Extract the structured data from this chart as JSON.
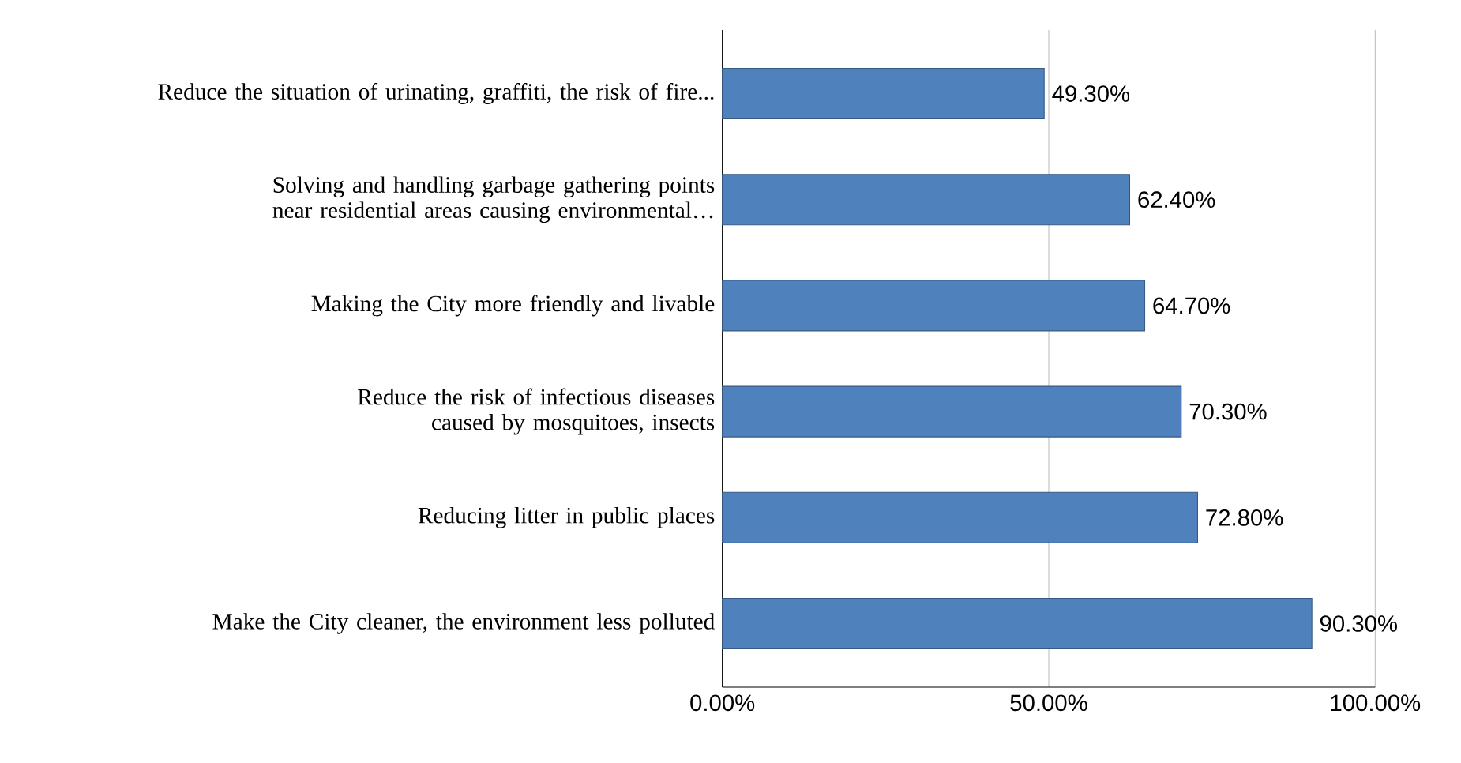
{
  "chart_data": {
    "type": "bar",
    "orientation": "horizontal",
    "categories": [
      "Reduce the situation of urinating, graffiti, the risk of fire...",
      "Solving and handling garbage gathering points near residential areas causing environmental…",
      "Making the City more friendly and livable",
      "Reduce the risk of infectious diseases caused by mosquitoes, insects",
      "Reducing litter in public places",
      "Make the City cleaner, the environment less polluted"
    ],
    "values": [
      49.3,
      62.4,
      64.7,
      70.3,
      72.8,
      90.3
    ],
    "value_labels": [
      "49.30%",
      "62.40%",
      "64.70%",
      "70.30%",
      "72.80%",
      "90.30%"
    ],
    "color": "#4f81bd",
    "xlim": [
      0,
      100
    ],
    "xticks": [
      {
        "value": 0,
        "label": "0.00%"
      },
      {
        "value": 50,
        "label": "50.00%"
      },
      {
        "value": 100,
        "label": "100.00%"
      }
    ],
    "grid": "x"
  }
}
